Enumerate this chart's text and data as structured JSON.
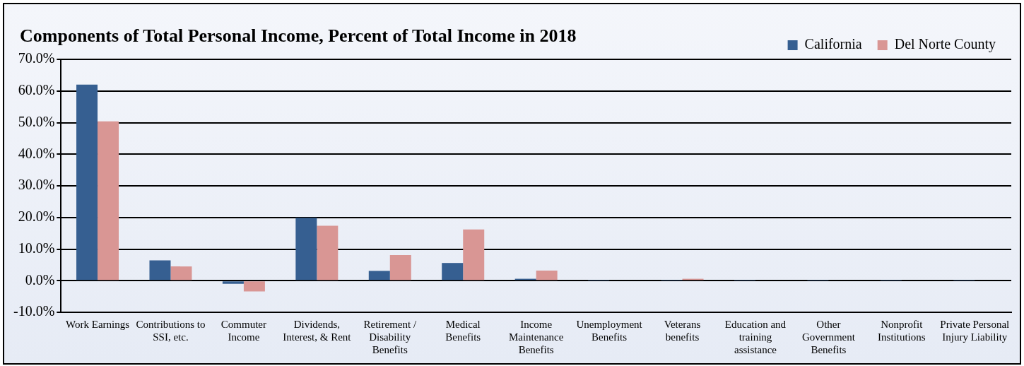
{
  "chart_data": {
    "type": "bar",
    "title": "Components of Total Personal Income, Percent of Total Income in 2018",
    "categories": [
      "Work Earnings",
      "Contributions to SSI, etc.",
      "Commuter Income",
      "Dividends, Interest, & Rent",
      "Retirement / Disability Benefits",
      "Medical Benefits",
      "Income Maintenance Benefits",
      "Unemployment Benefits",
      "Veterans benefits",
      "Education and training assistance",
      "Other Government Benefits",
      "Nonprofit Institutions",
      "Private Personal Injury Liability"
    ],
    "series": [
      {
        "name": "California",
        "color": "#365f91",
        "values": [
          62.0,
          6.4,
          -1.0,
          19.9,
          3.1,
          5.6,
          0.6,
          0.1,
          0.1,
          0.1,
          0.1,
          0.1,
          0.1
        ]
      },
      {
        "name": "Del Norte County",
        "color": "#d99694",
        "values": [
          50.4,
          4.5,
          -3.4,
          17.4,
          8.1,
          16.2,
          3.2,
          null,
          0.6,
          null,
          null,
          null,
          null
        ]
      }
    ],
    "ylim": [
      -10,
      70
    ],
    "yticks": [
      {
        "value": -10,
        "label": "-10.0%"
      },
      {
        "value": 0,
        "label": "0.0%"
      },
      {
        "value": 10,
        "label": "10.0%"
      },
      {
        "value": 20,
        "label": "20.0%"
      },
      {
        "value": 30,
        "label": "30.0%"
      },
      {
        "value": 40,
        "label": "40.0%"
      },
      {
        "value": 50,
        "label": "50.0%"
      },
      {
        "value": 60,
        "label": "60.0%"
      },
      {
        "value": 70,
        "label": "70.0%"
      }
    ],
    "grid": "y",
    "legend": "top right"
  }
}
